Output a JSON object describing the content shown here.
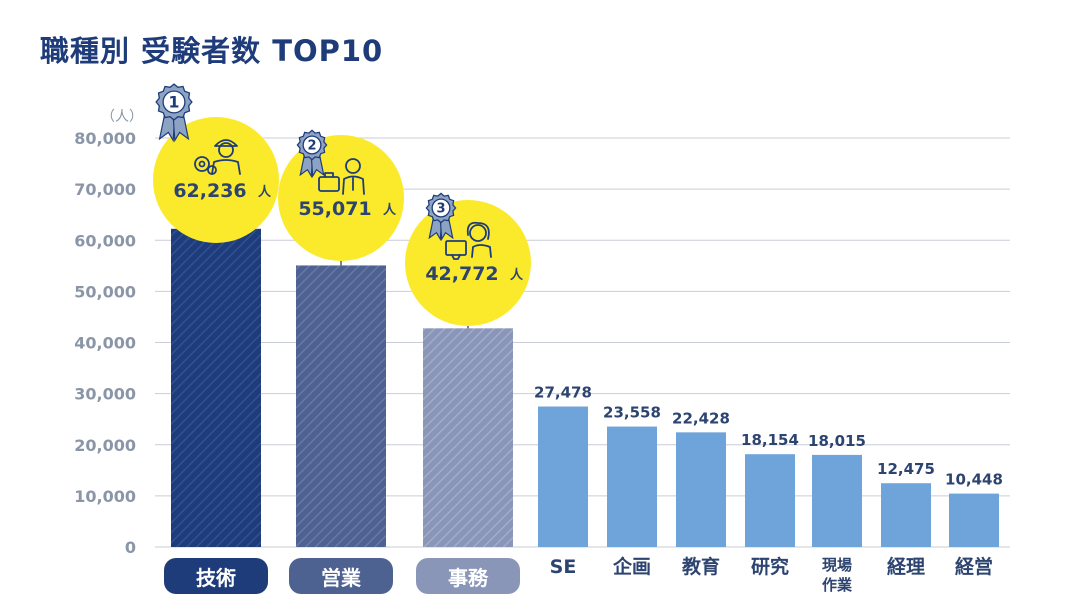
{
  "title": "職種別 受験者数 TOP10",
  "colors": {
    "title": "#1f3c7a",
    "axis_text": "#8a96a8",
    "grid": "#c9ced6",
    "value_label": "#2d4470",
    "highlight_circle": "#fbea2b",
    "rank1": "#1f3c7a",
    "rank2": "#4e6292",
    "rank3": "#8996b8",
    "others": "#6fa4da",
    "medal": "#8da3c4"
  },
  "chart_data": {
    "type": "bar",
    "title": "職種別 受験者数 TOP10",
    "unit_label": "（人）",
    "ylim": [
      0,
      80000
    ],
    "yticks": [
      {
        "value": 0,
        "label": "0"
      },
      {
        "value": 10000,
        "label": "10,000"
      },
      {
        "value": 20000,
        "label": "20,000"
      },
      {
        "value": 30000,
        "label": "30,000"
      },
      {
        "value": 40000,
        "label": "40,000"
      },
      {
        "value": 50000,
        "label": "50,000"
      },
      {
        "value": 60000,
        "label": "60,000"
      },
      {
        "value": 70000,
        "label": "70,000"
      },
      {
        "value": 80000,
        "label": "80,000"
      }
    ],
    "grid": true,
    "categories": [
      "技術",
      "営業",
      "事務",
      "SE",
      "企画",
      "教育",
      "研究",
      "現場作業",
      "経理",
      "経営"
    ],
    "category_lines": [
      [
        "技術"
      ],
      [
        "営業"
      ],
      [
        "事務"
      ],
      [
        "SE"
      ],
      [
        "企画"
      ],
      [
        "教育"
      ],
      [
        "研究"
      ],
      [
        "現場",
        "作業"
      ],
      [
        "経理"
      ],
      [
        "経営"
      ]
    ],
    "values": [
      62236,
      55071,
      42772,
      27478,
      23558,
      22428,
      18154,
      18015,
      12475,
      10448
    ],
    "value_labels": [
      "62,236",
      "55,071",
      "42,772",
      "27,478",
      "23,558",
      "22,428",
      "18,154",
      "18,015",
      "12,475",
      "10,448"
    ],
    "value_suffix": "人",
    "ranks": [
      {
        "rank": "1",
        "icon": "engineer-icon"
      },
      {
        "rank": "2",
        "icon": "businessman-icon"
      },
      {
        "rank": "3",
        "icon": "office-worker-icon"
      }
    ]
  }
}
